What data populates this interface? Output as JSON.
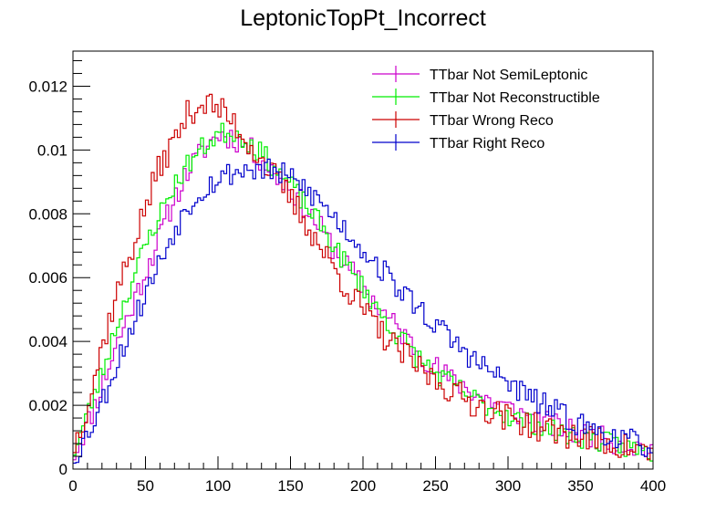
{
  "chart_data": {
    "type": "line",
    "title": "LeptonicTopPt_Incorrect",
    "xlabel": "",
    "ylabel": "",
    "xlim": [
      0,
      400
    ],
    "ylim": [
      0,
      0.0131
    ],
    "x_ticks": [
      "0",
      "50",
      "100",
      "150",
      "200",
      "250",
      "300",
      "350",
      "400"
    ],
    "y_ticks": [
      "0",
      "0.002",
      "0.004",
      "0.006",
      "0.008",
      "0.01",
      "0.012"
    ],
    "grid": false,
    "legend_position": "top-right",
    "bin_width": 2,
    "series": [
      {
        "name": "TTbar Not SemiLeptonic",
        "color": "#cc00cc",
        "shape": [
          [
            0,
            0.0004
          ],
          [
            10,
            0.0014
          ],
          [
            20,
            0.0026
          ],
          [
            30,
            0.0039
          ],
          [
            40,
            0.005
          ],
          [
            50,
            0.0062
          ],
          [
            60,
            0.0073
          ],
          [
            70,
            0.0085
          ],
          [
            80,
            0.0094
          ],
          [
            90,
            0.01
          ],
          [
            100,
            0.0105
          ],
          [
            110,
            0.0104
          ],
          [
            120,
            0.0101
          ],
          [
            130,
            0.0097
          ],
          [
            140,
            0.0092
          ],
          [
            150,
            0.0088
          ],
          [
            160,
            0.0082
          ],
          [
            170,
            0.0076
          ],
          [
            180,
            0.0069
          ],
          [
            190,
            0.0063
          ],
          [
            200,
            0.0057
          ],
          [
            210,
            0.0051
          ],
          [
            220,
            0.0046
          ],
          [
            230,
            0.0041
          ],
          [
            240,
            0.0036
          ],
          [
            250,
            0.0032
          ],
          [
            260,
            0.0028
          ],
          [
            270,
            0.0026
          ],
          [
            280,
            0.0023
          ],
          [
            290,
            0.0021
          ],
          [
            300,
            0.0019
          ],
          [
            310,
            0.0017
          ],
          [
            320,
            0.0015
          ],
          [
            330,
            0.0014
          ],
          [
            340,
            0.0012
          ],
          [
            350,
            0.0011
          ],
          [
            360,
            0.001
          ],
          [
            370,
            0.0009
          ],
          [
            380,
            0.0008
          ],
          [
            390,
            0.0007
          ],
          [
            400,
            0.0006
          ]
        ],
        "noise": 0.0004,
        "seed": 11
      },
      {
        "name": "TTbar Not Reconstructible",
        "color": "#00ee00",
        "shape": [
          [
            0,
            0.0005
          ],
          [
            10,
            0.0017
          ],
          [
            20,
            0.003
          ],
          [
            30,
            0.0045
          ],
          [
            40,
            0.0058
          ],
          [
            50,
            0.007
          ],
          [
            60,
            0.008
          ],
          [
            70,
            0.0089
          ],
          [
            80,
            0.0096
          ],
          [
            90,
            0.0101
          ],
          [
            100,
            0.0105
          ],
          [
            110,
            0.0106
          ],
          [
            120,
            0.0103
          ],
          [
            130,
            0.0099
          ],
          [
            140,
            0.0094
          ],
          [
            150,
            0.0089
          ],
          [
            160,
            0.0083
          ],
          [
            170,
            0.0077
          ],
          [
            180,
            0.007
          ],
          [
            190,
            0.0063
          ],
          [
            200,
            0.0057
          ],
          [
            210,
            0.005
          ],
          [
            220,
            0.0044
          ],
          [
            230,
            0.0039
          ],
          [
            240,
            0.0034
          ],
          [
            250,
            0.003
          ],
          [
            260,
            0.0027
          ],
          [
            270,
            0.0024
          ],
          [
            280,
            0.0021
          ],
          [
            290,
            0.0019
          ],
          [
            300,
            0.0017
          ],
          [
            310,
            0.0015
          ],
          [
            320,
            0.0014
          ],
          [
            330,
            0.0012
          ],
          [
            340,
            0.0011
          ],
          [
            350,
            0.001
          ],
          [
            360,
            0.0009
          ],
          [
            370,
            0.0008
          ],
          [
            380,
            0.0007
          ],
          [
            390,
            0.0006
          ],
          [
            400,
            0.0005
          ]
        ],
        "noise": 0.00035,
        "seed": 23
      },
      {
        "name": "TTbar Wrong Reco",
        "color": "#cc0000",
        "shape": [
          [
            0,
            0.0006
          ],
          [
            10,
            0.002
          ],
          [
            20,
            0.0038
          ],
          [
            30,
            0.0055
          ],
          [
            40,
            0.0068
          ],
          [
            50,
            0.0082
          ],
          [
            60,
            0.0095
          ],
          [
            70,
            0.0103
          ],
          [
            80,
            0.0112
          ],
          [
            90,
            0.0115
          ],
          [
            100,
            0.0113
          ],
          [
            110,
            0.0109
          ],
          [
            120,
            0.0103
          ],
          [
            130,
            0.0097
          ],
          [
            140,
            0.0091
          ],
          [
            150,
            0.0085
          ],
          [
            160,
            0.0078
          ],
          [
            170,
            0.007
          ],
          [
            180,
            0.0063
          ],
          [
            190,
            0.0056
          ],
          [
            200,
            0.005
          ],
          [
            210,
            0.0044
          ],
          [
            220,
            0.0039
          ],
          [
            230,
            0.0035
          ],
          [
            240,
            0.0031
          ],
          [
            250,
            0.0028
          ],
          [
            260,
            0.0025
          ],
          [
            270,
            0.0022
          ],
          [
            280,
            0.002
          ],
          [
            290,
            0.0018
          ],
          [
            300,
            0.0016
          ],
          [
            310,
            0.0015
          ],
          [
            320,
            0.0013
          ],
          [
            330,
            0.0012
          ],
          [
            340,
            0.0011
          ],
          [
            350,
            0.001
          ],
          [
            360,
            0.0009
          ],
          [
            370,
            0.0008
          ],
          [
            380,
            0.0007
          ],
          [
            390,
            0.0006
          ],
          [
            400,
            0.0005
          ]
        ],
        "noise": 0.00045,
        "seed": 37
      },
      {
        "name": "TTbar Right Reco",
        "color": "#0000cc",
        "shape": [
          [
            0,
            0.0003
          ],
          [
            10,
            0.0011
          ],
          [
            20,
            0.0021
          ],
          [
            30,
            0.0033
          ],
          [
            40,
            0.0044
          ],
          [
            50,
            0.0055
          ],
          [
            60,
            0.0065
          ],
          [
            70,
            0.0075
          ],
          [
            80,
            0.0083
          ],
          [
            90,
            0.0088
          ],
          [
            100,
            0.0091
          ],
          [
            110,
            0.0093
          ],
          [
            120,
            0.0094
          ],
          [
            130,
            0.0094
          ],
          [
            140,
            0.0093
          ],
          [
            150,
            0.0091
          ],
          [
            160,
            0.0088
          ],
          [
            170,
            0.0084
          ],
          [
            180,
            0.0079
          ],
          [
            190,
            0.0074
          ],
          [
            200,
            0.0069
          ],
          [
            210,
            0.0064
          ],
          [
            220,
            0.0059
          ],
          [
            230,
            0.0054
          ],
          [
            240,
            0.005
          ],
          [
            250,
            0.0045
          ],
          [
            260,
            0.0041
          ],
          [
            270,
            0.0037
          ],
          [
            280,
            0.0033
          ],
          [
            290,
            0.003
          ],
          [
            300,
            0.0027
          ],
          [
            310,
            0.0024
          ],
          [
            320,
            0.0021
          ],
          [
            330,
            0.0019
          ],
          [
            340,
            0.0016
          ],
          [
            350,
            0.0014
          ],
          [
            360,
            0.0012
          ],
          [
            370,
            0.0011
          ],
          [
            380,
            0.0009
          ],
          [
            390,
            0.0008
          ],
          [
            400,
            0.0007
          ]
        ],
        "noise": 0.0004,
        "seed": 53
      }
    ]
  }
}
